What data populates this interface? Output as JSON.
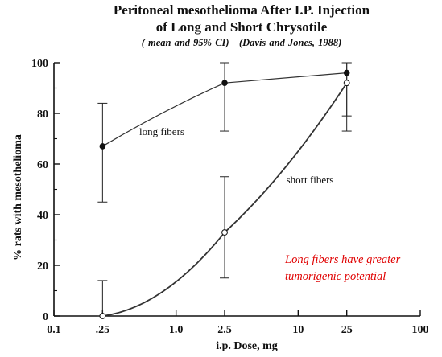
{
  "chart_data": {
    "type": "line",
    "title": "Peritoneal mesothelioma After I.P. Injection",
    "title2": "of Long and Short Chrysotile",
    "subtitle_left": "( mean and 95% CI)",
    "subtitle_right": "(Davis and Jones, 1988)",
    "xlabel": "i.p. Dose, mg",
    "ylabel": "% rats with mesothelioma",
    "xscale": "log",
    "xlim": [
      0.1,
      100
    ],
    "ylim": [
      0,
      100
    ],
    "x_ticks": [
      0.1,
      0.25,
      1.0,
      2.5,
      10,
      25,
      100
    ],
    "x_tick_labels": [
      "0.1",
      ".25",
      "1.0",
      "2.5",
      "10",
      "25",
      "100"
    ],
    "y_ticks": [
      0,
      20,
      40,
      60,
      80,
      100
    ],
    "y_tick_labels": [
      "0",
      "20",
      "40",
      "60",
      "80",
      "100"
    ],
    "grid": false,
    "series": [
      {
        "name": "long fibers",
        "marker": "filled-circle",
        "x": [
          0.25,
          2.5,
          25
        ],
        "y": [
          67,
          92,
          96
        ],
        "ci_low": [
          45,
          73,
          73
        ],
        "ci_high": [
          84,
          100,
          100
        ]
      },
      {
        "name": "short fibers",
        "marker": "open-circle",
        "x": [
          0.25,
          2.5,
          25
        ],
        "y": [
          0,
          33,
          92
        ],
        "ci_low": [
          0,
          15,
          79
        ],
        "ci_high": [
          14,
          55,
          100
        ]
      }
    ],
    "annotation_line1": "Long fibers have greater",
    "annotation_line2_underlined": "tumorigenic",
    "annotation_line2_rest": " potential",
    "annotation_color": "#e00000"
  }
}
